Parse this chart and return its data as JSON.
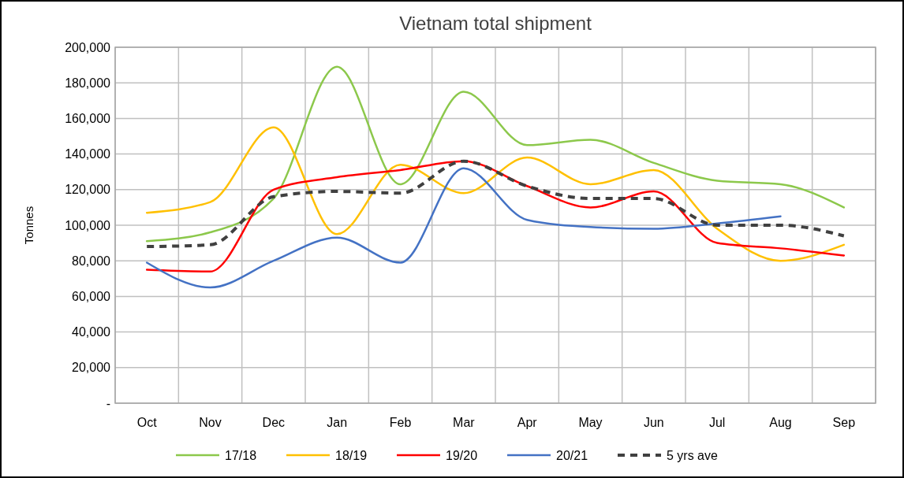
{
  "chart_data": {
    "type": "line",
    "title": "Vietnam total shipment",
    "ylabel": "Tonnes",
    "categories": [
      "Oct",
      "Nov",
      "Dec",
      "Jan",
      "Feb",
      "Mar",
      "Apr",
      "May",
      "Jun",
      "Jul",
      "Aug",
      "Sep"
    ],
    "ylim": [
      0,
      200000
    ],
    "yticks": [
      {
        "value": 0,
        "label": "-"
      },
      {
        "value": 20000,
        "label": "20,000"
      },
      {
        "value": 40000,
        "label": "40,000"
      },
      {
        "value": 60000,
        "label": "60,000"
      },
      {
        "value": 80000,
        "label": "80,000"
      },
      {
        "value": 100000,
        "label": "100,000"
      },
      {
        "value": 120000,
        "label": "120,000"
      },
      {
        "value": 140000,
        "label": "140,000"
      },
      {
        "value": 160000,
        "label": "160,000"
      },
      {
        "value": 180000,
        "label": "180,000"
      },
      {
        "value": 200000,
        "label": "200,000"
      }
    ],
    "grid": true,
    "legend": "bottom",
    "marker": "none",
    "series": [
      {
        "name": "17/18",
        "color": "#8cc84b",
        "values": [
          91000,
          96000,
          115000,
          189000,
          123000,
          175000,
          145000,
          148000,
          135000,
          125000,
          123000,
          110000
        ]
      },
      {
        "name": "18/19",
        "color": "#ffc000",
        "values": [
          107000,
          113000,
          155000,
          95000,
          134000,
          118000,
          138000,
          123000,
          131000,
          98000,
          80000,
          89000
        ]
      },
      {
        "name": "19/20",
        "color": "#ff0000",
        "values": [
          75000,
          74000,
          120000,
          127000,
          131000,
          136000,
          122000,
          110000,
          119000,
          90000,
          87000,
          83000
        ]
      },
      {
        "name": "20/21",
        "color": "#4472c4",
        "values": [
          79000,
          65000,
          80000,
          93000,
          79000,
          132000,
          103000,
          99000,
          98000,
          101000,
          105000,
          null
        ]
      },
      {
        "name": "5 yrs ave",
        "color": "#404040",
        "line_style": "dashed",
        "values": [
          88000,
          89000,
          116000,
          119000,
          118000,
          136000,
          122000,
          115000,
          115000,
          100000,
          100000,
          94000
        ]
      }
    ]
  }
}
